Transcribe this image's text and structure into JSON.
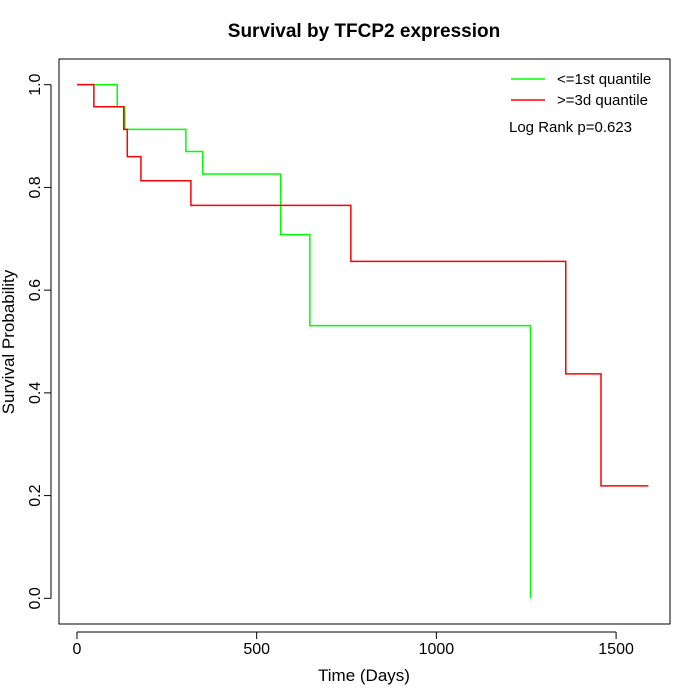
{
  "chart_data": {
    "type": "line",
    "title": "Survival by TFCP2 expression",
    "xlabel": "Time (Days)",
    "ylabel": "Survival Probability",
    "xlim": [
      -50,
      1650
    ],
    "ylim": [
      -0.05,
      1.05
    ],
    "x_ticks": [
      0,
      500,
      1000,
      1500
    ],
    "x_tick_labels": [
      "0",
      "500",
      "1000",
      "1500"
    ],
    "y_ticks": [
      0.0,
      0.2,
      0.4,
      0.6,
      0.8,
      1.0
    ],
    "y_tick_labels": [
      "0.0",
      "0.2",
      "0.4",
      "0.6",
      "0.8",
      "1.0"
    ],
    "grid": false,
    "legend_position": "top-right",
    "annotation": "Log Rank p=0.623",
    "series": [
      {
        "name": "<=1st quantile",
        "color": "#00ff00",
        "step": true,
        "x": [
          0,
          112,
          133,
          303,
          350,
          567,
          648,
          1262,
          1262
        ],
        "y": [
          1.0,
          0.957,
          0.913,
          0.87,
          0.826,
          0.708,
          0.531,
          0.531,
          0.0
        ]
      },
      {
        "name": ">=3d quantile",
        "color": "#ff0000",
        "step": true,
        "x": [
          0,
          47,
          130,
          140,
          178,
          317,
          762,
          1360,
          1458,
          1590
        ],
        "y": [
          1.0,
          0.957,
          0.913,
          0.86,
          0.813,
          0.765,
          0.656,
          0.437,
          0.219,
          0.219
        ]
      }
    ]
  }
}
